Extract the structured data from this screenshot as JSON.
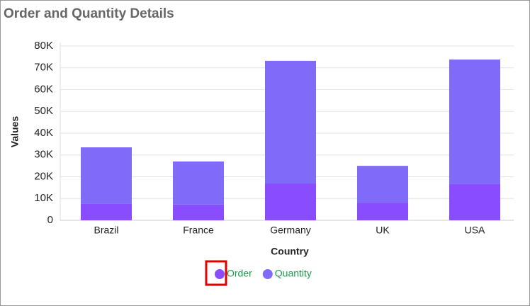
{
  "chart_data": {
    "type": "stacked_bar",
    "title": "Order and Quantity Details",
    "x_label": "Country",
    "y_label": "Values",
    "categories": [
      "Brazil",
      "France",
      "Germany",
      "UK",
      "USA"
    ],
    "series": [
      {
        "name": "Order",
        "color": "#8a4cff",
        "values": [
          7500,
          7200,
          16900,
          8100,
          16600
        ]
      },
      {
        "name": "Quantity",
        "color": "#806bf8",
        "values": [
          26000,
          19800,
          56300,
          16900,
          57200
        ]
      }
    ],
    "ylim": [
      0,
      80000
    ],
    "yticks": [
      {
        "value": 0,
        "label": "0"
      },
      {
        "value": 10000,
        "label": "10K"
      },
      {
        "value": 20000,
        "label": "20K"
      },
      {
        "value": 30000,
        "label": "30K"
      },
      {
        "value": 40000,
        "label": "40K"
      },
      {
        "value": 50000,
        "label": "50K"
      },
      {
        "value": 60000,
        "label": "60K"
      },
      {
        "value": 70000,
        "label": "70K"
      },
      {
        "value": 80000,
        "label": "80K"
      }
    ],
    "grid": true
  }
}
